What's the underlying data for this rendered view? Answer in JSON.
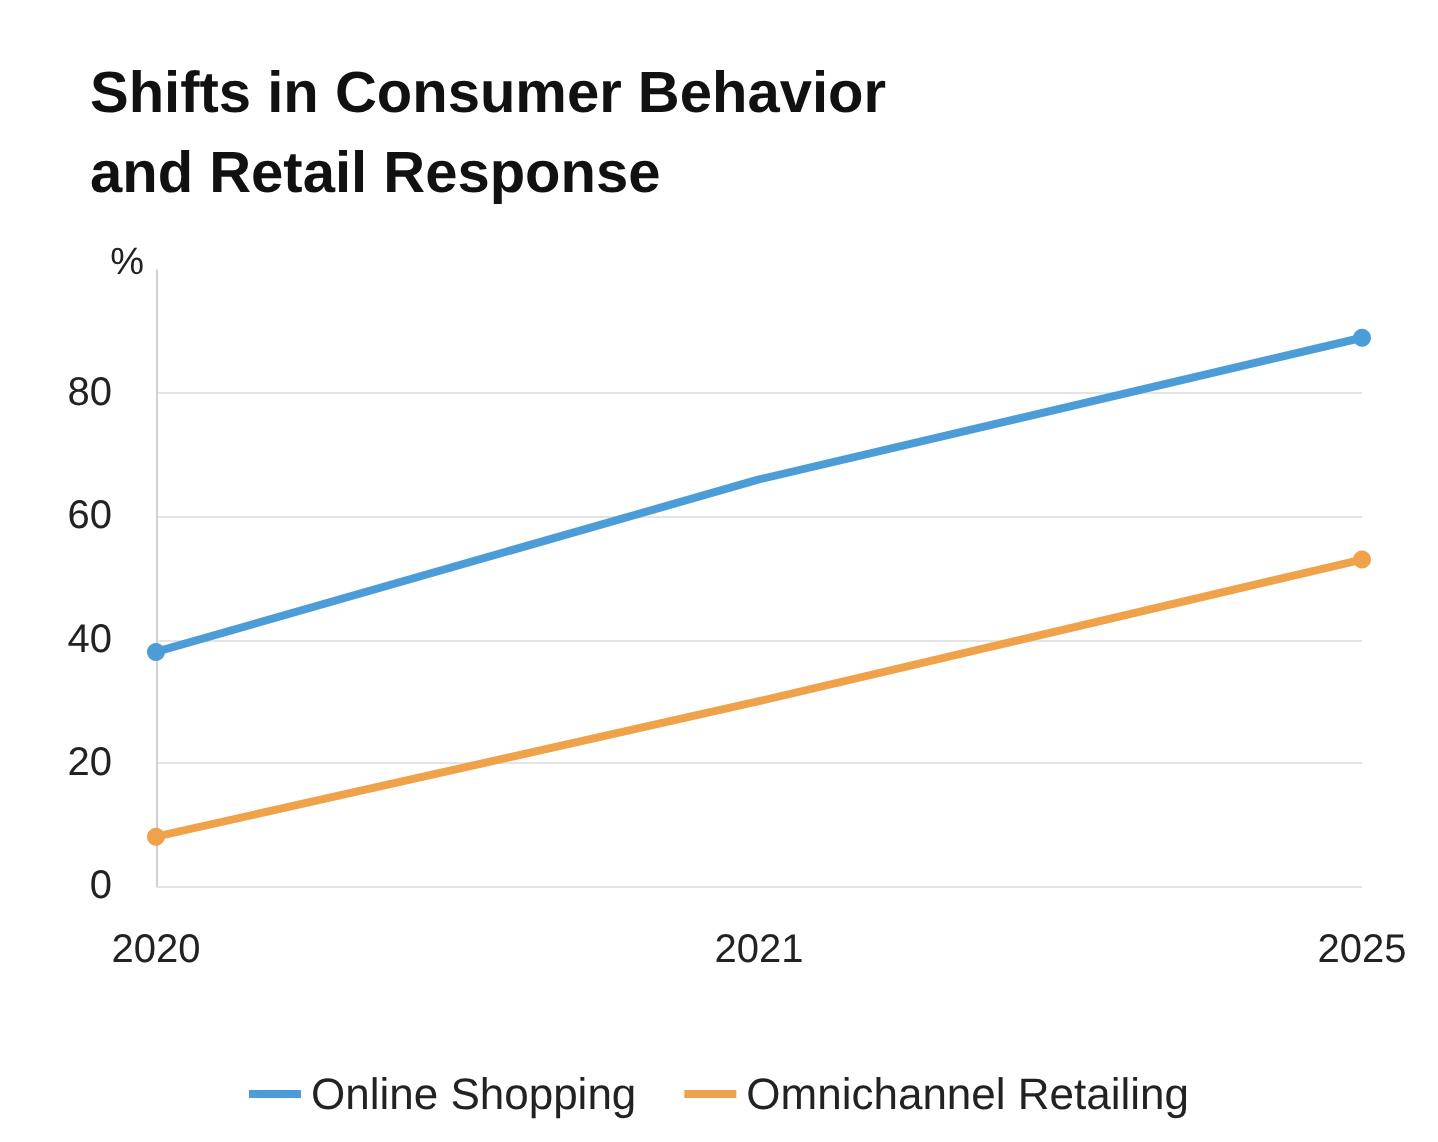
{
  "chart_data": {
    "type": "line",
    "title": "Shifts in Consumer Behavior\nand Retail Response",
    "ylabel": "%",
    "categories": [
      "2020",
      "2021",
      "2025"
    ],
    "series": [
      {
        "name": "Online Shopping",
        "color": "#4b9cd7",
        "values": [
          38,
          66,
          89
        ]
      },
      {
        "name": "Omnichannel Retailing",
        "color": "#f0a24a",
        "values": [
          8,
          30,
          53
        ]
      }
    ],
    "ylim": [
      0,
      100
    ],
    "yticks": [
      0,
      20,
      40,
      60,
      80
    ],
    "grid": "y",
    "legend": "bottom",
    "marker": "circle",
    "line_style": "solid"
  }
}
